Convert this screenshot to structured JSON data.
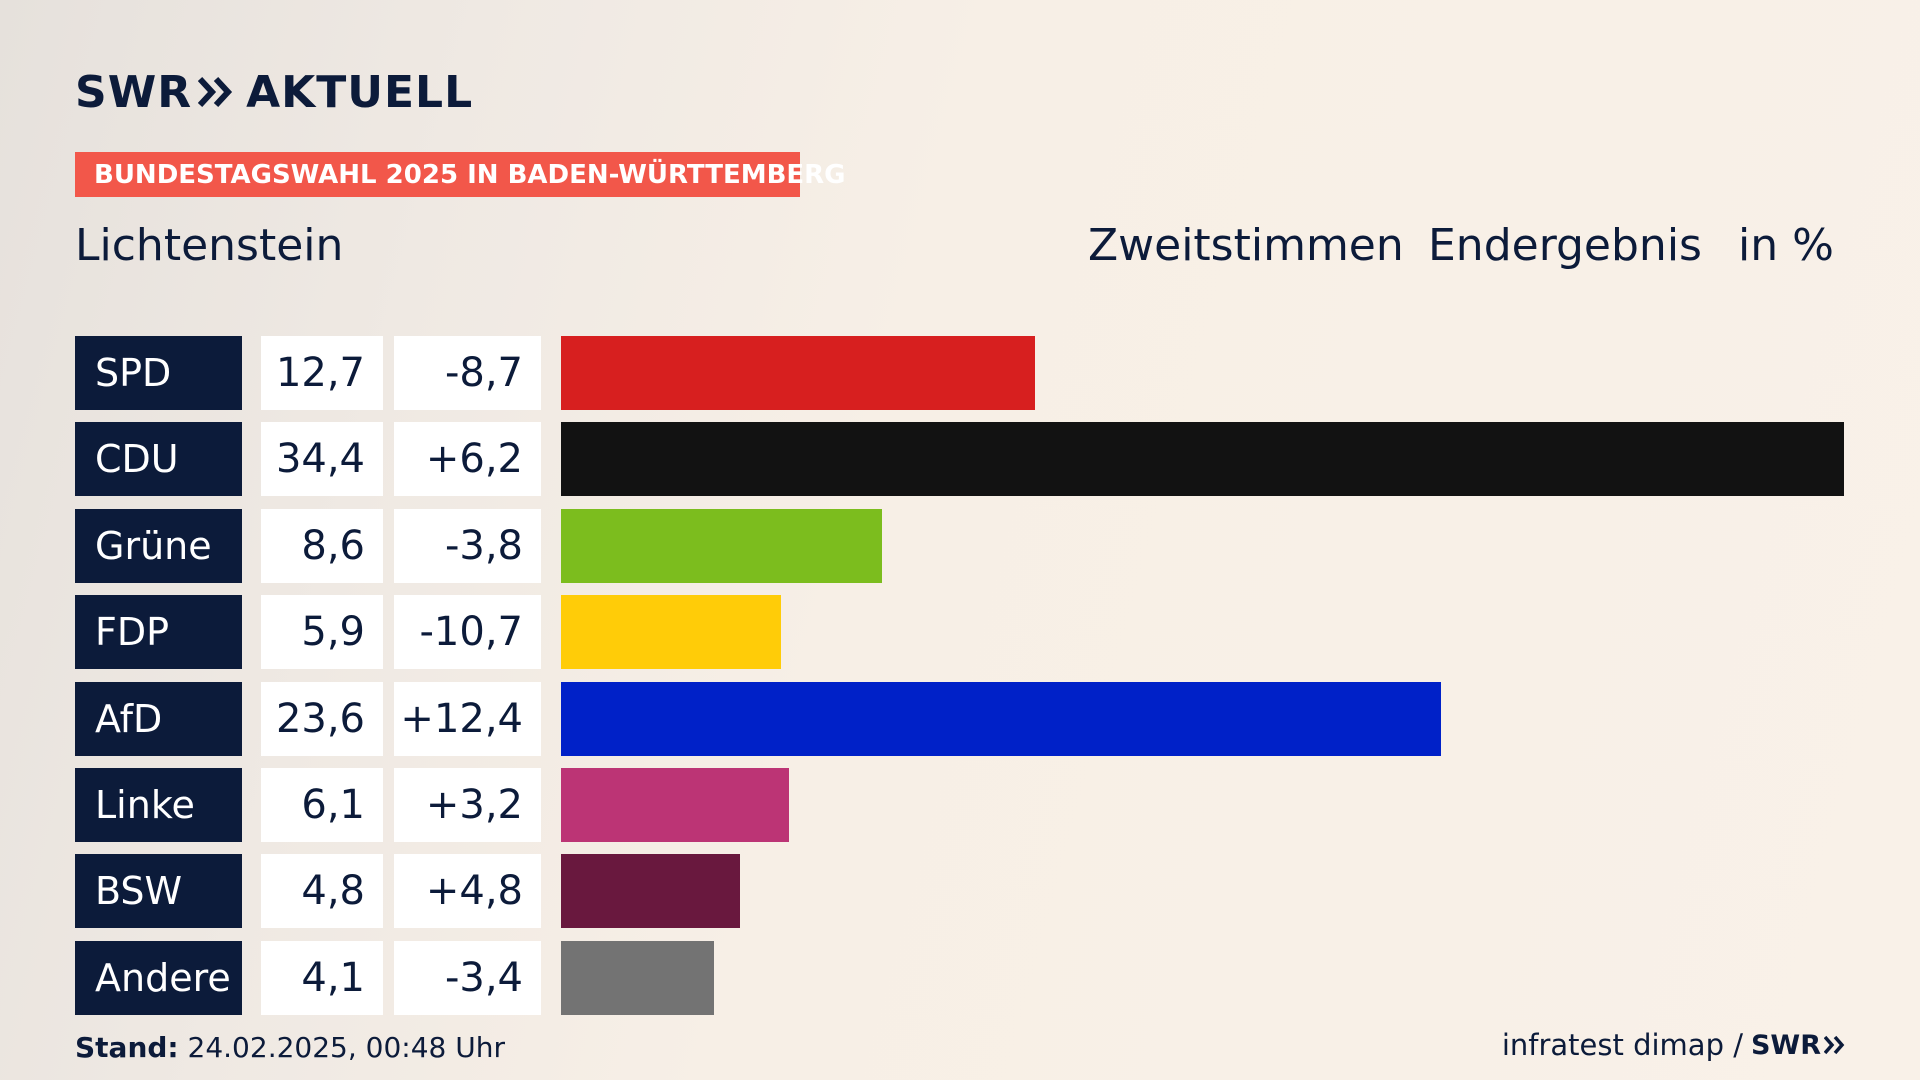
{
  "header": {
    "brand_word": "SWR",
    "brand_suffix": "AKTUELL",
    "badge": "BUNDESTAGSWAHL 2025 IN BADEN-WÜRTTEMBERG",
    "region": "Lichtenstein",
    "col1": "Zweitstimmen",
    "col2": "Endergebnis",
    "col3": "in %"
  },
  "footer": {
    "stand_label": "Stand:",
    "stand_value": "24.02.2025, 00:48 Uhr",
    "source": "infratest dimap /",
    "source_logo": "SWR"
  },
  "chart_data": {
    "type": "bar",
    "orientation": "horizontal",
    "categories": [
      "SPD",
      "CDU",
      "Grüne",
      "FDP",
      "AfD",
      "Linke",
      "BSW",
      "Andere"
    ],
    "values": [
      12.7,
      34.4,
      8.6,
      5.9,
      23.6,
      6.1,
      4.8,
      4.1
    ],
    "value_labels": [
      "12,7",
      "34,4",
      "8,6",
      "5,9",
      "23,6",
      "6,1",
      "4,8",
      "4,1"
    ],
    "change_labels": [
      "-8,7",
      "+6,2",
      "-3,8",
      "-10,7",
      "+12,4",
      "+3,2",
      "+4,8",
      "-3,4"
    ],
    "changes": [
      -8.7,
      6.2,
      -3.8,
      -10.7,
      12.4,
      3.2,
      4.8,
      -3.4
    ],
    "colors": [
      "#d71f1f",
      "#121212",
      "#7cbd1e",
      "#ffcc08",
      "#0021c8",
      "#bc3475",
      "#69183e",
      "#737373"
    ],
    "xlim": [
      0,
      34.4
    ]
  }
}
